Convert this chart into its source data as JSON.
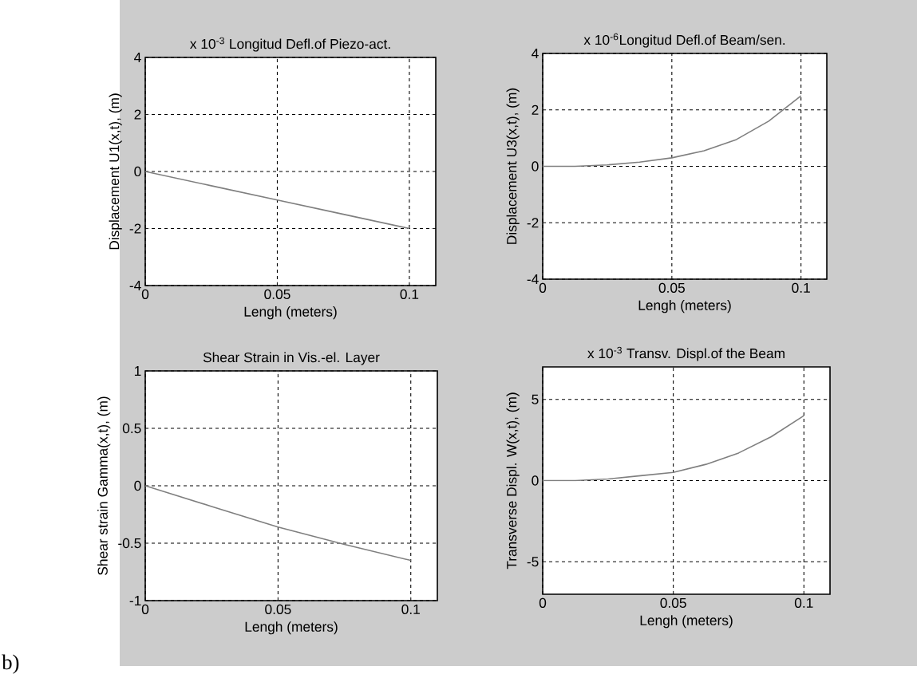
{
  "chart_data": [
    {
      "type": "line",
      "title": "x 10$^{-3}$ Longitud Defl.of Piezo-act.",
      "xlabel": "Lengh  (meters)",
      "ylabel": "Displacement U1(x,t), (m)",
      "color": "#7f7f7f",
      "grid": true,
      "line_style": "solid",
      "x": [
        0,
        0.025,
        0.05,
        0.075,
        0.1
      ],
      "values": [
        0,
        -0.5,
        -1.0,
        -1.5,
        -2.0
      ],
      "xlim": [
        0,
        0.11
      ],
      "ylim": [
        -4,
        4
      ],
      "xticks": [
        0,
        0.05,
        0.1
      ],
      "yticks": [
        -4,
        -2,
        0,
        2,
        4
      ]
    },
    {
      "type": "line",
      "title": "x 10$^{-6}$Longitud Defl.of Beam/sen.",
      "xlabel": "Lengh  (meters)",
      "ylabel": "Displacement U3(x,t), (m)",
      "color": "#7f7f7f",
      "grid": true,
      "line_style": "solid",
      "x": [
        0,
        0.0125,
        0.025,
        0.0375,
        0.05,
        0.0625,
        0.075,
        0.0875,
        0.1
      ],
      "values": [
        0,
        0,
        0.05,
        0.15,
        0.3,
        0.55,
        0.95,
        1.6,
        2.5
      ],
      "xlim": [
        0,
        0.11
      ],
      "ylim": [
        -4,
        4
      ],
      "xticks": [
        0,
        0.05,
        0.1
      ],
      "yticks": [
        -4,
        -2,
        0,
        2,
        4
      ]
    },
    {
      "type": "line",
      "title": "Shear Strain in Vis.-el. Layer",
      "xlabel": "Lengh  (meters)",
      "ylabel": "Shear strain Gamma(x,t), (m)",
      "color": "#7f7f7f",
      "grid": true,
      "line_style": "solid",
      "x": [
        0,
        0.025,
        0.05,
        0.075,
        0.1
      ],
      "values": [
        0,
        -0.18,
        -0.36,
        -0.51,
        -0.65
      ],
      "xlim": [
        0,
        0.11
      ],
      "ylim": [
        -1,
        1
      ],
      "xticks": [
        0,
        0.05,
        0.1
      ],
      "yticks": [
        -1,
        -0.5,
        0,
        0.5,
        1
      ],
      "annotations": [
        "b)"
      ]
    },
    {
      "type": "line",
      "title": "x 10$^{-3}$ Transv. Displ.of the Beam",
      "xlabel": "Lengh  (meters)",
      "ylabel": "Transverse Displ. W(x,t), (m)",
      "color": "#7f7f7f",
      "grid": true,
      "line_style": "solid",
      "x": [
        0,
        0.0125,
        0.025,
        0.0375,
        0.05,
        0.0625,
        0.075,
        0.0875,
        0.1
      ],
      "values": [
        0,
        0,
        0.1,
        0.3,
        0.5,
        1.0,
        1.7,
        2.7,
        4.0
      ],
      "xlim": [
        0,
        0.11
      ],
      "ylim": [
        -7,
        7
      ],
      "xticks": [
        0,
        0.05,
        0.1
      ],
      "yticks": [
        -5,
        0,
        5
      ]
    }
  ]
}
